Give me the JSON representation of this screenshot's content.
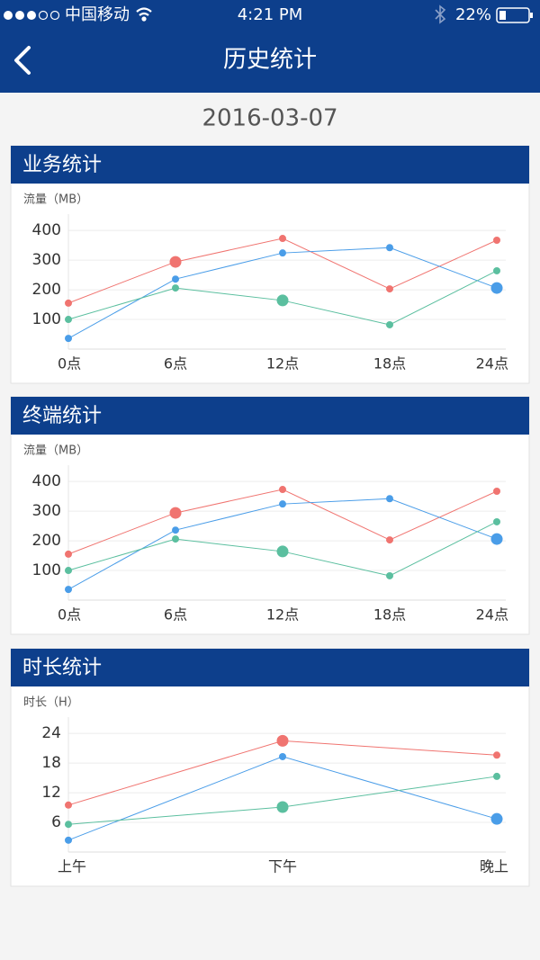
{
  "status_bar": {
    "carrier": "中国移动",
    "time": "4:21 PM",
    "battery": "22%"
  },
  "header": {
    "title": "历史统计"
  },
  "date": "2016-03-07",
  "chart_data": [
    {
      "type": "line",
      "title": "业务统计",
      "y_axis_title": "流量（MB）",
      "categories": [
        "0点",
        "6点",
        "12点",
        "18点",
        "24点"
      ],
      "ylim": [
        0,
        455
      ],
      "yticks": [
        100,
        200,
        300,
        400
      ],
      "grid": true,
      "series": [
        {
          "color": "#f07470",
          "values": [
            155,
            294,
            373,
            203,
            367
          ],
          "highlight": 1
        },
        {
          "color": "#4a9de8",
          "values": [
            36,
            236,
            324,
            342,
            206
          ],
          "highlight": 4
        },
        {
          "color": "#5bbf9f",
          "values": [
            100,
            206,
            164,
            82,
            264
          ],
          "highlight": 2
        }
      ]
    },
    {
      "type": "line",
      "title": "终端统计",
      "y_axis_title": "流量（MB）",
      "categories": [
        "0点",
        "6点",
        "12点",
        "18点",
        "24点"
      ],
      "ylim": [
        0,
        455
      ],
      "yticks": [
        100,
        200,
        300,
        400
      ],
      "grid": true,
      "series": [
        {
          "color": "#f07470",
          "values": [
            155,
            294,
            373,
            203,
            367
          ],
          "highlight": 1
        },
        {
          "color": "#4a9de8",
          "values": [
            36,
            236,
            324,
            342,
            206
          ],
          "highlight": 4
        },
        {
          "color": "#5bbf9f",
          "values": [
            100,
            206,
            164,
            82,
            264
          ],
          "highlight": 2
        }
      ]
    },
    {
      "type": "line",
      "title": "时长统计",
      "y_axis_title": "时长（H）",
      "categories": [
        "上午",
        "下午",
        "晚上"
      ],
      "ylim": [
        0,
        27.3
      ],
      "yticks": [
        6,
        12,
        18,
        24
      ],
      "grid": true,
      "series": [
        {
          "color": "#f07470",
          "values": [
            9.5,
            22.5,
            19.6
          ],
          "highlight": 1
        },
        {
          "color": "#4a9de8",
          "values": [
            2.4,
            19.3,
            6.7
          ],
          "highlight": 2
        },
        {
          "color": "#5bbf9f",
          "values": [
            5.6,
            9.1,
            15.3
          ],
          "highlight": 1
        }
      ]
    }
  ]
}
